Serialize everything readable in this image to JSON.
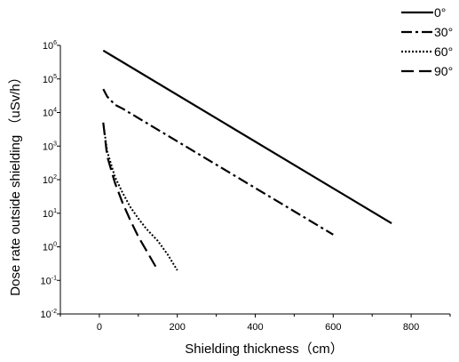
{
  "chart_data": {
    "type": "line",
    "title": "",
    "xlabel": "Shielding thickness（cm）",
    "ylabel": "Dose rate outside shielding （uSv/h）",
    "xlim": [
      -100,
      900
    ],
    "ylim_log10": [
      -2,
      6
    ],
    "y_scale": "log",
    "grid": false,
    "legend_position": "top-right",
    "x_ticks": [
      0,
      200,
      400,
      600,
      800
    ],
    "y_ticks": [
      {
        "base": "10",
        "exp": "6"
      },
      {
        "base": "10",
        "exp": "5"
      },
      {
        "base": "10",
        "exp": "4"
      },
      {
        "base": "10",
        "exp": "3"
      },
      {
        "base": "10",
        "exp": "2"
      },
      {
        "base": "10",
        "exp": "1"
      },
      {
        "base": "10",
        "exp": "0"
      },
      {
        "base": "10",
        "exp": "-1"
      },
      {
        "base": "10",
        "exp": "-2"
      }
    ],
    "series": [
      {
        "name": "0°",
        "dash": "solid",
        "x": [
          10,
          750
        ],
        "y": [
          700000,
          5
        ]
      },
      {
        "name": "30°",
        "dash": "dashdot",
        "x": [
          10,
          20,
          40,
          60,
          600
        ],
        "y": [
          50000,
          30000,
          17000,
          13000,
          2.3
        ]
      },
      {
        "name": "60°",
        "dash": "dotted",
        "x": [
          10,
          20,
          40,
          60,
          80,
          100,
          120,
          150,
          175,
          200
        ],
        "y": [
          5000,
          700,
          120,
          40,
          15,
          7,
          3.5,
          1.5,
          0.6,
          0.2
        ]
      },
      {
        "name": "90°",
        "dash": "longdash",
        "x": [
          10,
          20,
          40,
          60,
          80,
          100,
          120,
          145
        ],
        "y": [
          5000,
          500,
          80,
          20,
          6,
          2,
          0.8,
          0.25
        ]
      }
    ]
  }
}
